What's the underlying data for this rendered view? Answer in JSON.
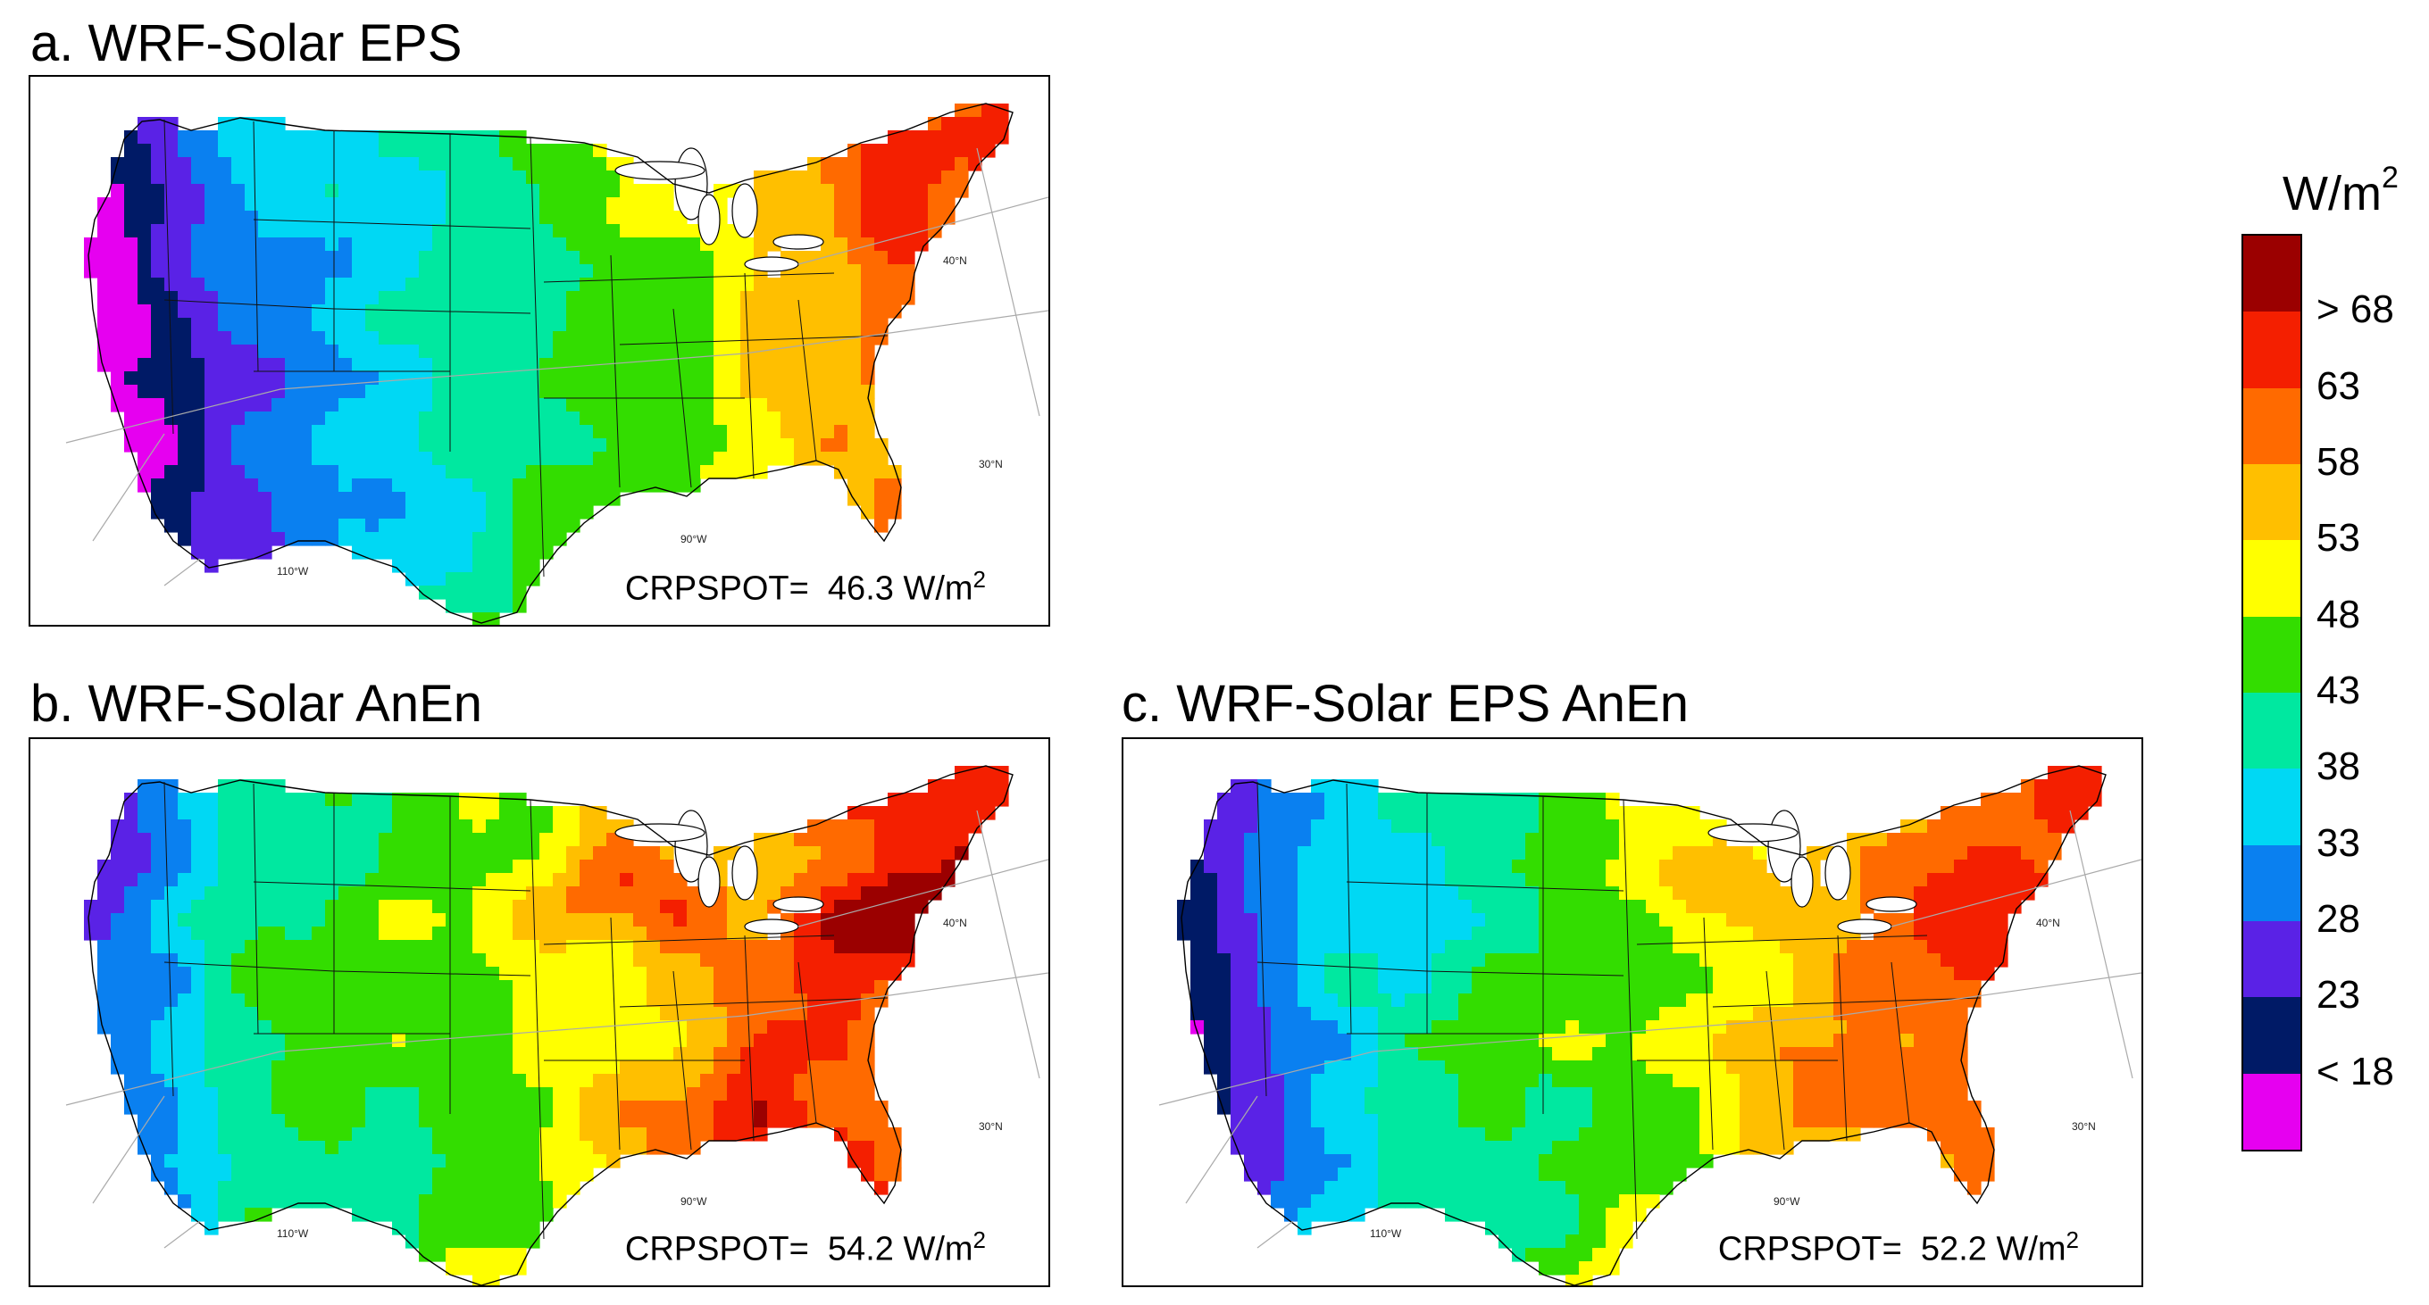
{
  "panels": [
    {
      "id": "a",
      "title": "a. WRF-Solar EPS",
      "crps_prefix": "CRPSPOT=",
      "crps_value": "46.3",
      "crps_unit": "W/m",
      "crps_exp": "2",
      "scheme": 0
    },
    {
      "id": "b",
      "title": "b. WRF-Solar AnEn",
      "crps_prefix": "CRPSPOT=",
      "crps_value": "54.2",
      "crps_unit": "W/m",
      "crps_exp": "2",
      "scheme": 1
    },
    {
      "id": "c",
      "title": "c. WRF-Solar EPS AnEn",
      "crps_prefix": "CRPSPOT=",
      "crps_value": "52.2",
      "crps_unit": "W/m",
      "crps_exp": "2",
      "scheme": 2
    }
  ],
  "map_labels": {
    "lat40": "40°N",
    "lat30": "30°N",
    "lon90": "90°W",
    "lon110": "110°W"
  },
  "colorbar": {
    "unit_base": "W/m",
    "unit_exp": "2",
    "colors": [
      "#9b0000",
      "#f41f00",
      "#ff6a00",
      "#ffbf00",
      "#ffff00",
      "#33dd00",
      "#00e8a0",
      "#00d8f4",
      "#0a80f0",
      "#5a22e6",
      "#001a66",
      "#e600f0"
    ],
    "labels": [
      "> 68",
      "63",
      "58",
      "53",
      "48",
      "43",
      "38",
      "33",
      "28",
      "23",
      "< 18"
    ]
  }
}
